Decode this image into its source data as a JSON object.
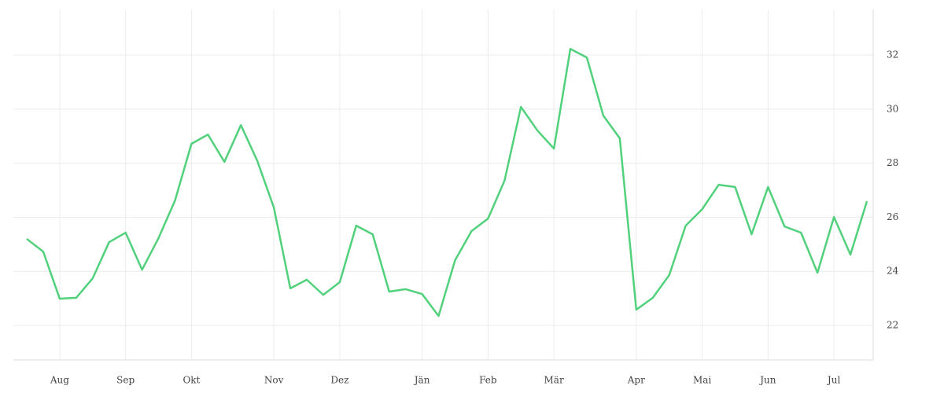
{
  "chart_data": {
    "type": "line",
    "categories": [
      null,
      null,
      "Aug",
      null,
      null,
      null,
      "Sep",
      null,
      null,
      null,
      "Okt",
      null,
      null,
      null,
      null,
      "Nov",
      null,
      null,
      null,
      "Dez",
      null,
      null,
      null,
      null,
      "Jän",
      null,
      null,
      null,
      "Feb",
      null,
      null,
      null,
      "Mär",
      null,
      null,
      null,
      null,
      "Apr",
      null,
      null,
      null,
      "Mai",
      null,
      null,
      null,
      "Jun",
      null,
      null,
      null,
      "Jul",
      null,
      null
    ],
    "series": [
      {
        "color": "#52d17c",
        "values": [
          25.2,
          24.73,
          22.99,
          23.02,
          23.74,
          25.08,
          25.43,
          24.06,
          25.23,
          26.62,
          28.72,
          29.06,
          28.05,
          29.41,
          28.08,
          26.36,
          23.37,
          23.69,
          23.13,
          23.6,
          25.69,
          25.37,
          23.25,
          23.34,
          23.16,
          22.35,
          24.41,
          25.49,
          25.95,
          27.35,
          30.08,
          29.21,
          28.54,
          32.23,
          31.91,
          29.76,
          28.92,
          22.58,
          23.02,
          23.86,
          25.69,
          26.3,
          27.2,
          27.12,
          25.37,
          27.12,
          25.66,
          25.43,
          23.95,
          26.01,
          24.62,
          26.59
        ]
      }
    ],
    "ylim": [
      20.72,
      33.69
    ],
    "yticks": [
      22,
      24,
      26,
      28,
      30,
      32
    ],
    "grid": true
  }
}
